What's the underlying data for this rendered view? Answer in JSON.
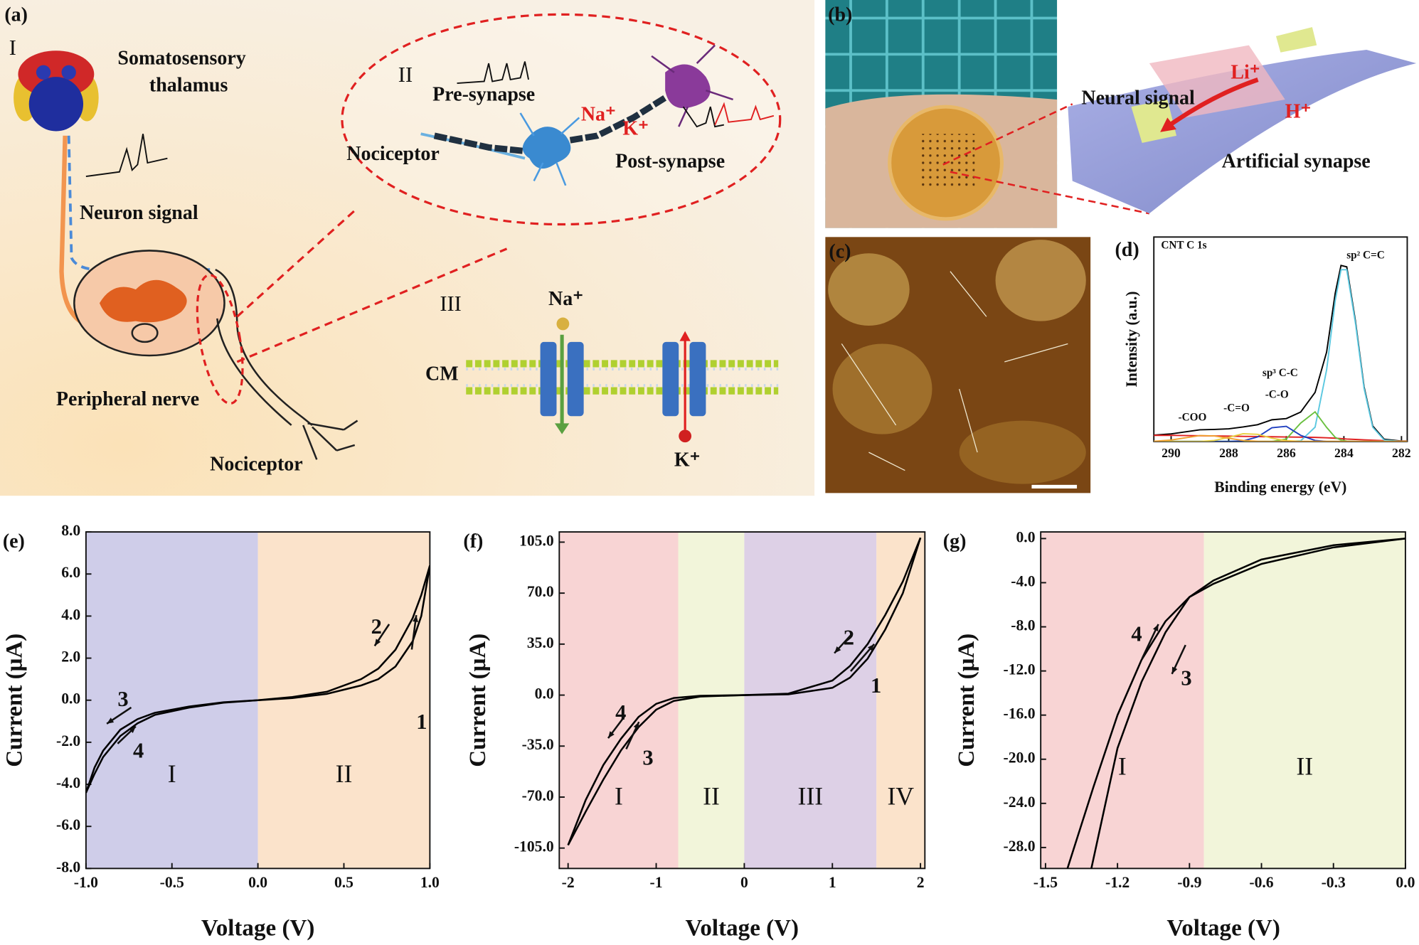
{
  "figure": {
    "a": {
      "label": "(a)",
      "part_1": "I",
      "thalamus_1": "Somatosensory",
      "thalamus_2": "thalamus",
      "neuron_signal": "Neuron signal",
      "peripheral_nerve": "Peripheral nerve",
      "nociceptor": "Nociceptor",
      "part_2": "II",
      "pre_synapse": "Pre-synapse",
      "nociceptor_2": "Nociceptor",
      "na": "Na⁺",
      "k": "K⁺",
      "post_synapse": "Post-synapse",
      "part_3": "III",
      "na_2": "Na⁺",
      "cm": "CM",
      "k_2": "K⁺"
    },
    "b": {
      "label": "(b)",
      "neural_signal": "Neural signal",
      "li": "Li⁺",
      "h": "H⁺",
      "artificial_synapse": "Artificial synapse"
    },
    "c": {
      "label": "(c)"
    }
  },
  "chart_data": [
    {
      "type": "line",
      "label": "(d)",
      "note": "CNT C 1s",
      "xlabel": "Binding energy (eV)",
      "ylabel": "Intensity (a.u.)",
      "xlim": [
        290.6,
        281.8
      ],
      "ylim": [
        0,
        100
      ],
      "xticks": [
        290,
        288,
        286,
        284,
        282
      ],
      "annotations": [
        "-COO",
        "-C=O",
        "-C-O",
        "sp³ C-C",
        "sp² C=C"
      ],
      "x": [
        290.6,
        290,
        289.5,
        289,
        288.5,
        288,
        287.5,
        287,
        286.5,
        286,
        285.5,
        285,
        284.6,
        284.3,
        284.1,
        283.9,
        283.6,
        283.3,
        283,
        282.6,
        282,
        281.8
      ],
      "series": [
        {
          "color": "#000000",
          "values": [
            3.1,
            3.7,
            4.7,
            5.7,
            5.9,
            6.2,
            7.1,
            8.2,
            10.6,
            11.2,
            14.4,
            24,
            43.7,
            72.6,
            86.1,
            85.4,
            59,
            26.8,
            7.6,
            1.1,
            0.2,
            0.2
          ]
        },
        {
          "color": "#e02020",
          "values": [
            3,
            3,
            2.9,
            2.8,
            2.7,
            2.6,
            2.5,
            2.4,
            2.3,
            2.2,
            2.1,
            2,
            1.8,
            1.6,
            1.4,
            1.2,
            1,
            0.8,
            0.6,
            0.4,
            0.2,
            0.2
          ]
        },
        {
          "color": "#5bc8e0",
          "values": [
            0,
            0,
            0,
            0,
            0,
            0,
            0,
            0,
            0,
            0,
            0.3,
            7,
            35,
            69,
            84,
            84,
            58,
            26,
            7,
            0.7,
            0,
            0
          ]
        },
        {
          "color": "#6ac040",
          "values": [
            0,
            0,
            0,
            0,
            0,
            0,
            0,
            0,
            0,
            1.2,
            9,
            14.5,
            6.9,
            2,
            0.7,
            0.2,
            0,
            0,
            0,
            0,
            0,
            0
          ]
        },
        {
          "color": "#2040c0",
          "values": [
            0,
            0,
            0,
            0,
            0,
            0,
            0.3,
            2.2,
            6.7,
            7.4,
            3,
            0.5,
            0,
            0,
            0,
            0,
            0,
            0,
            0,
            0,
            0,
            0
          ]
        },
        {
          "color": "#e8d040",
          "values": [
            0,
            0,
            0,
            0,
            0.5,
            2,
            3.8,
            3.5,
            1.6,
            0.4,
            0,
            0,
            0,
            0,
            0,
            0,
            0,
            0,
            0,
            0,
            0,
            0
          ]
        },
        {
          "color": "#f0a030",
          "values": [
            0.1,
            0.7,
            1.8,
            2.9,
            2.7,
            1.6,
            0.5,
            0.1,
            0,
            0,
            0,
            0,
            0,
            0,
            0,
            0,
            0,
            0,
            0,
            0,
            0,
            0
          ]
        }
      ]
    },
    {
      "type": "line",
      "label": "(e)",
      "xlabel": "Voltage (V)",
      "ylabel": "Current (μA)",
      "xlim": [
        -1.0,
        1.0
      ],
      "ylim": [
        -8.0,
        8.0
      ],
      "xticks": [
        {
          "value": -1,
          "label": "-1.0"
        },
        -0.5,
        {
          "value": 0,
          "label": "0.0"
        },
        0.5,
        {
          "value": 1,
          "label": "1.0"
        }
      ],
      "yticks": [
        {
          "value": -8,
          "label": "-8.0"
        },
        {
          "value": -6,
          "label": "-6.0"
        },
        {
          "value": -4,
          "label": "-4.0"
        },
        {
          "value": -2,
          "label": "-2.0"
        },
        {
          "value": 0,
          "label": "0.0"
        },
        {
          "value": 2,
          "label": "2.0"
        },
        {
          "value": 4,
          "label": "4.0"
        },
        {
          "value": 6,
          "label": "6.0"
        },
        {
          "value": 8,
          "label": "8.0"
        }
      ],
      "regions": [
        {
          "label": "I",
          "from": -1.0,
          "to": 0,
          "color": "#cfcde9"
        },
        {
          "label": "II",
          "from": 0,
          "to": 1.0,
          "color": "#fbe3cb"
        }
      ],
      "annotations": [
        "1",
        "2",
        "3",
        "4"
      ],
      "series": [
        {
          "color": "#000000",
          "x": [
            0,
            0.2,
            0.4,
            0.6,
            0.7,
            0.8,
            0.9,
            0.95,
            1.0
          ],
          "values": [
            0,
            0.1,
            0.3,
            0.7,
            1.0,
            1.6,
            2.8,
            4.0,
            6.4
          ]
        },
        {
          "color": "#000000",
          "x": [
            1.0,
            0.95,
            0.9,
            0.8,
            0.7,
            0.6,
            0.4,
            0.2,
            0
          ],
          "values": [
            6.4,
            5.0,
            3.9,
            2.4,
            1.5,
            1.0,
            0.4,
            0.15,
            0
          ]
        },
        {
          "color": "#000000",
          "x": [
            0,
            -0.2,
            -0.4,
            -0.6,
            -0.7,
            -0.8,
            -0.9,
            -0.95,
            -1.0
          ],
          "values": [
            0,
            -0.1,
            -0.3,
            -0.6,
            -0.9,
            -1.4,
            -2.4,
            -3.2,
            -4.4
          ]
        },
        {
          "color": "#000000",
          "x": [
            -1.0,
            -0.95,
            -0.9,
            -0.8,
            -0.7,
            -0.6,
            -0.4,
            -0.2,
            0
          ],
          "values": [
            -4.4,
            -3.5,
            -2.7,
            -1.7,
            -1.1,
            -0.7,
            -0.35,
            -0.12,
            0
          ]
        }
      ]
    },
    {
      "type": "line",
      "label": "(f)",
      "xlabel": "Voltage (V)",
      "ylabel": "Current (μA)",
      "xlim": [
        -2.1,
        2.05
      ],
      "ylim": [
        -119,
        112
      ],
      "xticks": [
        -2,
        -1,
        0,
        1,
        2
      ],
      "yticks": [
        {
          "value": -105,
          "label": "-105.0"
        },
        {
          "value": -70,
          "label": "-70.0"
        },
        {
          "value": -35,
          "label": "-35.0"
        },
        {
          "value": 0,
          "label": "0.0"
        },
        {
          "value": 35,
          "label": "35.0"
        },
        {
          "value": 70,
          "label": "70.0"
        },
        {
          "value": 105,
          "label": "105.0"
        }
      ],
      "regions": [
        {
          "label": "I",
          "from": -2.1,
          "to": -0.75,
          "color": "#f8d4d4"
        },
        {
          "label": "II",
          "from": -0.75,
          "to": 0,
          "color": "#f2f5da"
        },
        {
          "label": "III",
          "from": 0,
          "to": 1.5,
          "color": "#ddd0e6"
        },
        {
          "label": "IV",
          "from": 1.5,
          "to": 2.05,
          "color": "#fbe3cb"
        }
      ],
      "annotations": [
        "1",
        "2",
        "3",
        "4"
      ],
      "series": [
        {
          "color": "#000000",
          "x": [
            0,
            0.5,
            1,
            1.2,
            1.4,
            1.6,
            1.8,
            2.0
          ],
          "values": [
            0,
            0.5,
            5,
            12,
            25,
            45,
            70,
            108
          ]
        },
        {
          "color": "#000000",
          "x": [
            2.0,
            1.8,
            1.6,
            1.4,
            1.2,
            1.0,
            0.5,
            0
          ],
          "values": [
            108,
            78,
            55,
            35,
            20,
            10,
            1,
            0
          ]
        },
        {
          "color": "#000000",
          "x": [
            0,
            -0.5,
            -0.8,
            -1.0,
            -1.2,
            -1.4,
            -1.6,
            -1.8,
            -2.0
          ],
          "values": [
            0,
            -0.5,
            -2,
            -6,
            -15,
            -30,
            -48,
            -72,
            -103
          ]
        },
        {
          "color": "#000000",
          "x": [
            -2.0,
            -1.8,
            -1.6,
            -1.4,
            -1.2,
            -1.0,
            -0.8,
            -0.5,
            0
          ],
          "values": [
            -103,
            -80,
            -58,
            -38,
            -22,
            -10,
            -4,
            -1,
            0
          ]
        }
      ]
    },
    {
      "type": "line",
      "label": "(g)",
      "xlabel": "Voltage (V)",
      "ylabel": "Current (μA)",
      "xlim": [
        -1.52,
        0.0
      ],
      "ylim": [
        -29.9,
        0.6
      ],
      "xticks": [
        -1.5,
        -1.2,
        -0.9,
        -0.6,
        -0.3,
        {
          "value": 0,
          "label": "0.0"
        }
      ],
      "yticks": [
        {
          "value": -28,
          "label": "-28.0"
        },
        {
          "value": -24,
          "label": "-24.0"
        },
        {
          "value": -20,
          "label": "-20.0"
        },
        {
          "value": -16,
          "label": "-16.0"
        },
        {
          "value": -12,
          "label": "-12.0"
        },
        {
          "value": -8,
          "label": "-8.0"
        },
        {
          "value": -4,
          "label": "-4.0"
        },
        {
          "value": 0,
          "label": "0.0"
        }
      ],
      "regions": [
        {
          "label": "I",
          "from": -1.52,
          "to": -0.84,
          "color": "#f8d4d4"
        },
        {
          "label": "II",
          "from": -0.84,
          "to": 0.0,
          "color": "#f2f5da"
        }
      ],
      "annotations": [
        "3",
        "4"
      ],
      "series": [
        {
          "color": "#000000",
          "x": [
            0,
            -0.3,
            -0.6,
            -0.8,
            -0.9,
            -1.0,
            -1.1,
            -1.2,
            -1.31
          ],
          "values": [
            0,
            -0.8,
            -2.3,
            -4.1,
            -5.3,
            -8.5,
            -13,
            -19,
            -30
          ]
        },
        {
          "color": "#000000",
          "x": [
            -1.41,
            -1.3,
            -1.2,
            -1.1,
            -1.0,
            -0.9,
            -0.8,
            -0.6,
            -0.3,
            0
          ],
          "values": [
            -30,
            -22.5,
            -16,
            -11,
            -7.5,
            -5.3,
            -3.8,
            -1.9,
            -0.6,
            0
          ]
        }
      ]
    }
  ]
}
